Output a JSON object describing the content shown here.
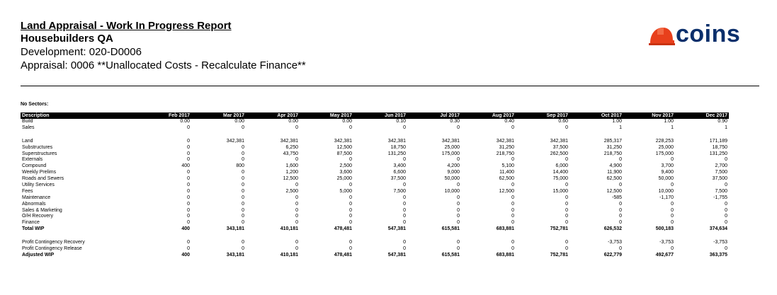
{
  "report": {
    "title": "Land Appraisal - Work In Progress Report",
    "company": "Housebuilders QA",
    "development": "Development: 020-D0006",
    "appraisal": "Appraisal: 0006 **Unallocated Costs - Recalculate Finance**"
  },
  "logo": {
    "text": "coins",
    "color": "#e8401c"
  },
  "sectors_label": "No Sectors:",
  "table": {
    "header_label": "Description",
    "months": [
      "Feb 2017",
      "Mar 2017",
      "Apr 2017",
      "May 2017",
      "Jun 2017",
      "Jul 2017",
      "Aug 2017",
      "Sep 2017",
      "Oct 2017",
      "Nov 2017",
      "Dec 2017"
    ],
    "groups": [
      [
        {
          "label": "Build",
          "values": [
            "0.00",
            "0.00",
            "0.00",
            "0.00",
            "0.10",
            "0.30",
            "0.40",
            "0.60",
            "1.00",
            "1.00",
            "0.90"
          ]
        },
        {
          "label": "Sales",
          "values": [
            "0",
            "0",
            "0",
            "0",
            "0",
            "0",
            "0",
            "0",
            "1",
            "1",
            "1"
          ]
        }
      ],
      [
        {
          "label": "Land",
          "values": [
            "0",
            "342,381",
            "342,381",
            "342,381",
            "342,381",
            "342,381",
            "342,381",
            "342,381",
            "285,317",
            "228,253",
            "171,189"
          ]
        },
        {
          "label": "Substructures",
          "values": [
            "0",
            "0",
            "6,250",
            "12,500",
            "18,750",
            "25,000",
            "31,250",
            "37,500",
            "31,250",
            "25,000",
            "18,750"
          ]
        },
        {
          "label": "Superstructures",
          "values": [
            "0",
            "0",
            "43,750",
            "87,500",
            "131,250",
            "175,000",
            "218,750",
            "262,500",
            "218,750",
            "175,000",
            "131,250"
          ]
        },
        {
          "label": "Externals",
          "values": [
            "0",
            "0",
            "0",
            "0",
            "0",
            "0",
            "0",
            "0",
            "0",
            "0",
            "0"
          ]
        },
        {
          "label": "Compound",
          "values": [
            "400",
            "800",
            "1,600",
            "2,500",
            "3,400",
            "4,200",
            "5,100",
            "6,000",
            "4,900",
            "3,700",
            "2,700"
          ]
        },
        {
          "label": "Weekly Prelims",
          "values": [
            "0",
            "0",
            "1,200",
            "3,600",
            "6,600",
            "9,000",
            "11,400",
            "14,400",
            "11,900",
            "9,400",
            "7,500"
          ]
        },
        {
          "label": "Roads and Sewers",
          "values": [
            "0",
            "0",
            "12,500",
            "25,000",
            "37,500",
            "50,000",
            "62,500",
            "75,000",
            "62,500",
            "50,000",
            "37,500"
          ]
        },
        {
          "label": "Utility Services",
          "values": [
            "0",
            "0",
            "0",
            "0",
            "0",
            "0",
            "0",
            "0",
            "0",
            "0",
            "0"
          ]
        },
        {
          "label": "Fees",
          "values": [
            "0",
            "0",
            "2,500",
            "5,000",
            "7,500",
            "10,000",
            "12,500",
            "15,000",
            "12,500",
            "10,000",
            "7,500"
          ]
        },
        {
          "label": "Maintenance",
          "values": [
            "0",
            "0",
            "0",
            "0",
            "0",
            "0",
            "0",
            "0",
            "-585",
            "-1,170",
            "-1,755"
          ]
        },
        {
          "label": "Abnormals",
          "values": [
            "0",
            "0",
            "0",
            "0",
            "0",
            "0",
            "0",
            "0",
            "0",
            "0",
            "0"
          ]
        },
        {
          "label": "Sales & Marketing",
          "values": [
            "0",
            "0",
            "0",
            "0",
            "0",
            "0",
            "0",
            "0",
            "0",
            "0",
            "0"
          ]
        },
        {
          "label": "O/H Recovery",
          "values": [
            "0",
            "0",
            "0",
            "0",
            "0",
            "0",
            "0",
            "0",
            "0",
            "0",
            "0"
          ]
        },
        {
          "label": "Finance",
          "values": [
            "0",
            "0",
            "0",
            "0",
            "0",
            "0",
            "0",
            "0",
            "0",
            "0",
            "0"
          ]
        },
        {
          "label": "Total WIP",
          "bold": true,
          "values": [
            "400",
            "343,181",
            "410,181",
            "478,481",
            "547,381",
            "615,581",
            "683,881",
            "752,781",
            "626,532",
            "500,183",
            "374,634"
          ]
        }
      ],
      [
        {
          "label": "Profit Contingency Recovery",
          "values": [
            "0",
            "0",
            "0",
            "0",
            "0",
            "0",
            "0",
            "0",
            "-3,753",
            "-3,753",
            "-3,753"
          ]
        },
        {
          "label": "Profit Contingency Release",
          "values": [
            "0",
            "0",
            "0",
            "0",
            "0",
            "0",
            "0",
            "0",
            "0",
            "0",
            "0"
          ]
        },
        {
          "label": "Adjusted WIP",
          "bold": true,
          "values": [
            "400",
            "343,181",
            "410,181",
            "478,481",
            "547,381",
            "615,581",
            "683,881",
            "752,781",
            "622,779",
            "492,677",
            "363,375"
          ]
        }
      ]
    ]
  }
}
